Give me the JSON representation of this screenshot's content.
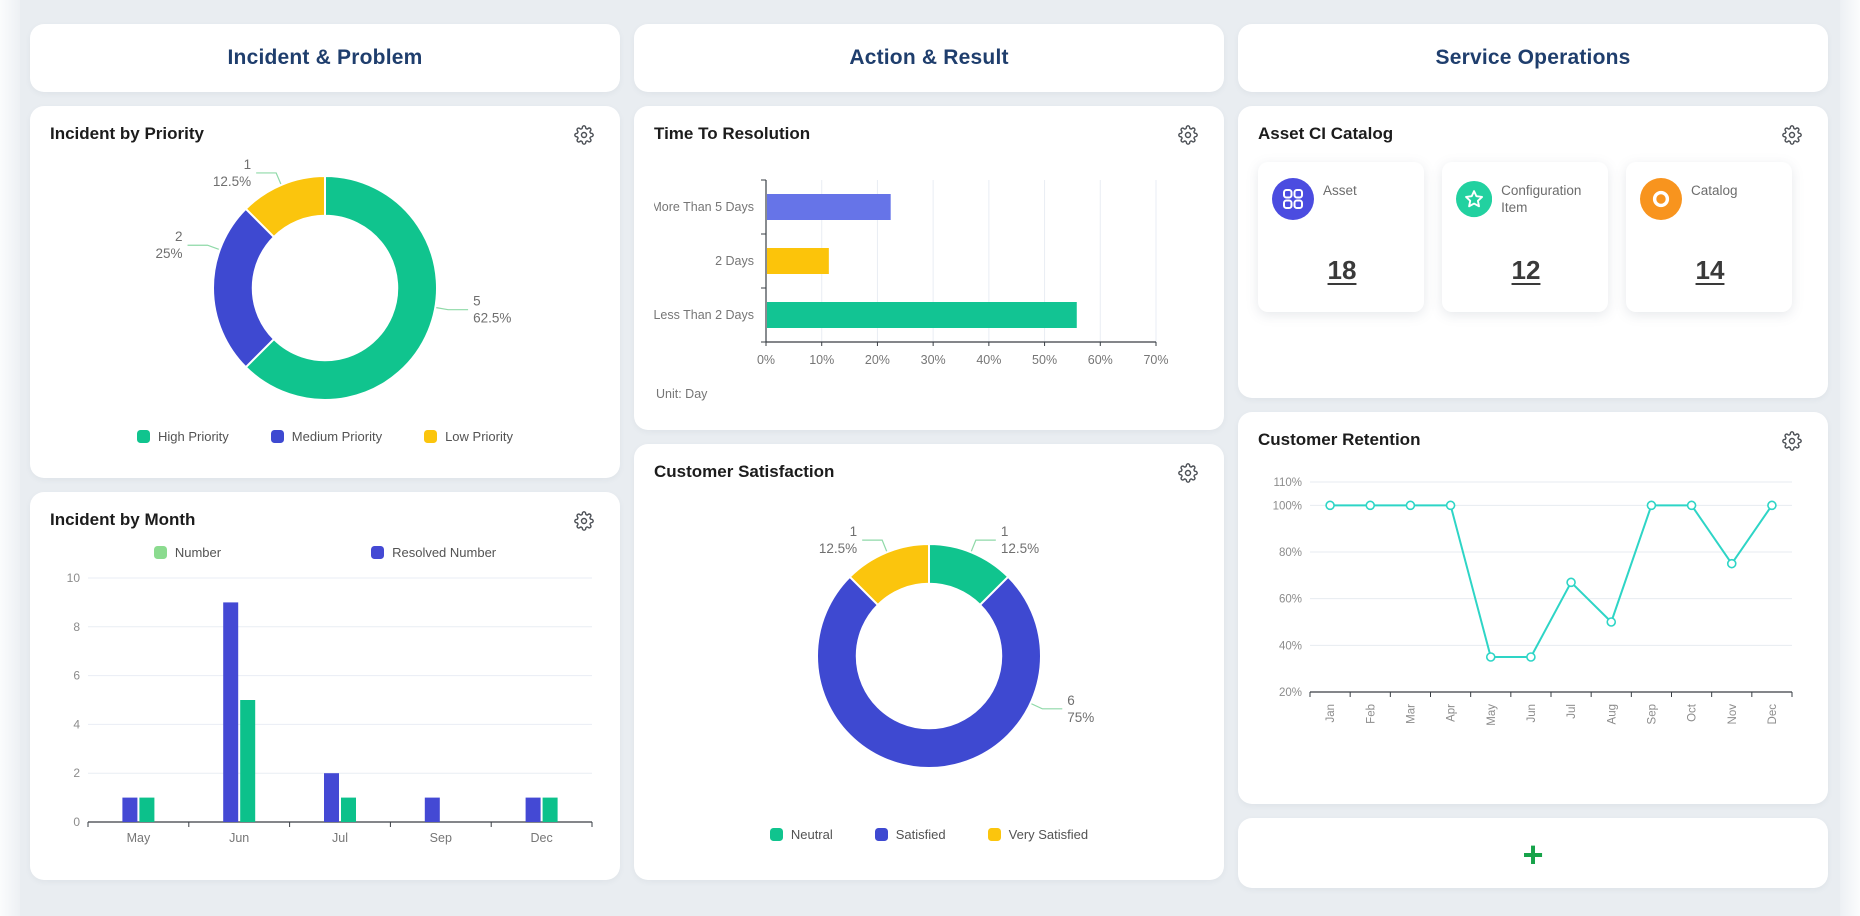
{
  "columns": [
    {
      "header": "Incident & Problem",
      "cards": [
        {
          "title": "Incident by Priority"
        },
        {
          "title": "Incident by Month"
        }
      ]
    },
    {
      "header": "Action & Result",
      "cards": [
        {
          "title": "Time To Resolution"
        },
        {
          "title": "Customer Satisfaction"
        }
      ]
    },
    {
      "header": "Service Operations",
      "cards": [
        {
          "title": "Asset CI Catalog",
          "stats": [
            {
              "label": "Asset",
              "value": "18",
              "color": "#4b4ce0",
              "icon": "grid-icon"
            },
            {
              "label": "Configuration Item",
              "value": "12",
              "color": "#22d1a0",
              "icon": "star-icon"
            },
            {
              "label": "Catalog",
              "value": "14",
              "color": "#f8941e",
              "icon": "ring-icon"
            }
          ]
        },
        {
          "title": "Customer Retention"
        },
        {
          "add_label": "+"
        }
      ]
    }
  ],
  "chart_data": [
    {
      "id": "incident_by_priority",
      "type": "pie",
      "donut": true,
      "title": "Incident by Priority",
      "legend_position": "bottom",
      "connector_color": "#8fd9a8",
      "slices": [
        {
          "label": "High Priority",
          "value": 5,
          "pct": "62.5%",
          "color": "#10c48e",
          "label_angle": 100
        },
        {
          "label": "Medium Priority",
          "value": 2,
          "pct": "25%",
          "color": "#3e49d1",
          "label_angle": 290
        },
        {
          "label": "Low Priority",
          "value": 1,
          "pct": "12.5%",
          "color": "#fbc50d",
          "label_angle": 337
        }
      ]
    },
    {
      "id": "incident_by_month",
      "type": "bar",
      "title": "Incident by Month",
      "categories": [
        "May",
        "Jun",
        "Jul",
        "Sep",
        "Dec"
      ],
      "series": [
        {
          "name": "Resolved Number",
          "color": "#4449d4",
          "values": [
            1,
            9,
            2,
            1,
            1
          ]
        },
        {
          "name": "Number",
          "color": "#0cc18b",
          "values": [
            1,
            5,
            1,
            0,
            1
          ]
        }
      ],
      "legend": [
        {
          "label": "Number",
          "color": "#8bdb8f"
        },
        {
          "label": "Resolved Number",
          "color": "#4449d4"
        }
      ],
      "ylim": [
        0,
        10
      ],
      "yticks": [
        0,
        2,
        4,
        6,
        8,
        10
      ],
      "grid": true,
      "legend_position": "top"
    },
    {
      "id": "time_to_resolution",
      "type": "hbar",
      "title": "Time To Resolution",
      "categories": [
        "More Than 5 Days",
        "2 Days",
        "Less Than 2 Days"
      ],
      "values": [
        22.2,
        11.1,
        55.6
      ],
      "colors": [
        "#6674e8",
        "#fcc40a",
        "#12c493"
      ],
      "xlim": [
        0,
        70
      ],
      "xticks": [
        0,
        10,
        20,
        30,
        40,
        50,
        60,
        70
      ],
      "x_suffix": "%",
      "note": "Unit: Day",
      "grid": true
    },
    {
      "id": "customer_satisfaction",
      "type": "pie",
      "donut": true,
      "title": "Customer Satisfaction",
      "legend_position": "bottom",
      "connector_color": "#8fd9a8",
      "slices": [
        {
          "label": "Neutral",
          "value": 1,
          "pct": "12.5%",
          "color": "#10c48e",
          "label_angle": 22
        },
        {
          "label": "Satisfied",
          "value": 6,
          "pct": "75%",
          "color": "#3e49d1",
          "label_angle": 115
        },
        {
          "label": "Very Satisfied",
          "value": 1,
          "pct": "12.5%",
          "color": "#fbc50d",
          "label_angle": 338
        }
      ]
    },
    {
      "id": "customer_retention",
      "type": "line",
      "title": "Customer Retention",
      "x": [
        "Jan",
        "Feb",
        "Mar",
        "Apr",
        "May",
        "Jun",
        "Jul",
        "Aug",
        "Sep",
        "Oct",
        "Nov",
        "Dec"
      ],
      "values": [
        100,
        100,
        100,
        100,
        35,
        35,
        67,
        50,
        100,
        100,
        75,
        100
      ],
      "color": "#2ed5c6",
      "marker": "open-circle",
      "ylim": [
        20,
        110
      ],
      "yticks": [
        20,
        40,
        60,
        80,
        100,
        110
      ],
      "y_suffix": "%",
      "x_label_rotate": 90,
      "grid": true
    }
  ]
}
